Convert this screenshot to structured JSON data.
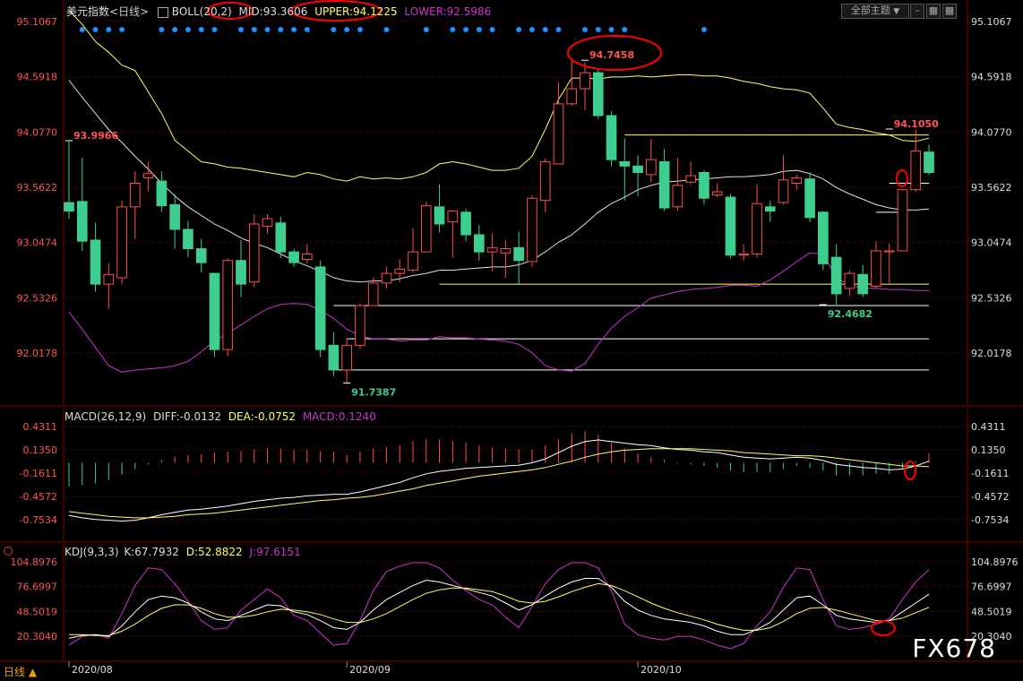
{
  "header": {
    "title": "美元指数",
    "period_tag": "<日线>",
    "boll_label": "BOLL(20,2)",
    "mid_label": "MID:93.3606",
    "upper_label": "UPPER:94.1225",
    "lower_label": "LOWER:92.5986",
    "theme_button": "全部主题",
    "theme_arrow": "▼"
  },
  "macd_header": {
    "label": "MACD(26,12,9)",
    "diff": "DIFF:-0.0132",
    "dea": "DEA:-0.0752",
    "macd": "MACD:0.1240"
  },
  "kdj_header": {
    "label": "KDJ(9,3,3)",
    "k": "K:67.7932",
    "d": "D:52.8822",
    "j": "J:97.6151"
  },
  "footer": {
    "mode": "日线 ▲",
    "watermark": "FX678"
  },
  "colors": {
    "up": "#ff4d4d",
    "down": "#3ecf8e",
    "mid": "#e0e0e0",
    "upper": "#ffff66",
    "lower": "#cc33cc",
    "axis_text_left": "#ff5555",
    "grid": "#8b0000",
    "annotation": "#ff0000",
    "dot": "#1e90ff"
  },
  "chart_data": {
    "type": "candlestick",
    "price_axis_ticks": [
      "95.1067",
      "94.5918",
      "94.0770",
      "93.5622",
      "93.0474",
      "92.5326",
      "92.0178"
    ],
    "macd_axis_ticks": [
      "0.4311",
      "0.1350",
      "-0.1611",
      "-0.4572",
      "-0.7534"
    ],
    "kdj_axis_ticks": [
      "104.8976",
      "76.6997",
      "48.5019",
      "20.3040"
    ],
    "x_labels": [
      {
        "label": "2020/08",
        "index": 0
      },
      {
        "label": "2020/09",
        "index": 21
      },
      {
        "label": "2020/10",
        "index": 43
      }
    ],
    "price_annotations": [
      {
        "text": "93.9966",
        "index": 0,
        "value": 93.9966,
        "color": "#ff5555"
      },
      {
        "text": "94.7458",
        "index": 39,
        "value": 94.7458,
        "color": "#ff5555"
      },
      {
        "text": "94.1050",
        "index": 62,
        "value": 94.105,
        "color": "#ff5555"
      },
      {
        "text": "91.7387",
        "index": 21,
        "value": 91.7387,
        "color": "#3ecf8e"
      },
      {
        "text": "92.4682",
        "index": 57,
        "value": 92.4682,
        "color": "#3ecf8e"
      }
    ],
    "hlines": [
      {
        "value": 94.05,
        "i0": 42,
        "i1": 65,
        "color": "#ffff66"
      },
      {
        "value": 93.6,
        "i0": 62,
        "i1": 65,
        "color": "#ffffff"
      },
      {
        "value": 93.33,
        "i0": 61,
        "i1": 63,
        "color": "#ffffff"
      },
      {
        "value": 92.66,
        "i0": 28,
        "i1": 65,
        "color": "#ffff66"
      },
      {
        "value": 92.46,
        "i0": 20,
        "i1": 65,
        "color": "#ffffff"
      },
      {
        "value": 92.15,
        "i0": 21,
        "i1": 65,
        "color": "#ffffff"
      },
      {
        "value": 91.86,
        "i0": 20,
        "i1": 65,
        "color": "#ffffff"
      }
    ],
    "candles": [
      [
        93.42,
        93.34,
        93.99,
        93.27
      ],
      [
        93.43,
        93.06,
        93.84,
        92.97
      ],
      [
        93.07,
        92.66,
        93.23,
        92.59
      ],
      [
        92.66,
        92.75,
        92.85,
        92.43
      ],
      [
        92.72,
        93.38,
        93.44,
        92.66
      ],
      [
        93.38,
        93.6,
        93.71,
        93.08
      ],
      [
        93.65,
        93.69,
        93.8,
        93.52
      ],
      [
        93.62,
        93.39,
        93.71,
        93.33
      ],
      [
        93.4,
        93.17,
        93.5,
        92.99
      ],
      [
        93.17,
        92.99,
        93.25,
        92.91
      ],
      [
        92.99,
        92.86,
        93.08,
        92.77
      ],
      [
        92.76,
        92.05,
        92.76,
        91.98
      ],
      [
        92.05,
        92.88,
        92.9,
        91.99
      ],
      [
        92.88,
        92.66,
        93.07,
        92.54
      ],
      [
        92.68,
        93.22,
        93.31,
        92.63
      ],
      [
        93.2,
        93.27,
        93.31,
        93.13
      ],
      [
        93.23,
        92.96,
        93.29,
        92.9
      ],
      [
        92.96,
        92.86,
        92.99,
        92.82
      ],
      [
        92.89,
        92.94,
        93.03,
        92.85
      ],
      [
        92.82,
        92.05,
        92.88,
        91.98
      ],
      [
        92.09,
        91.86,
        92.21,
        91.8
      ],
      [
        91.86,
        92.09,
        92.15,
        91.74
      ],
      [
        92.09,
        92.46,
        92.48,
        92.06
      ],
      [
        92.46,
        92.67,
        92.72,
        92.46
      ],
      [
        92.67,
        92.76,
        92.82,
        92.62
      ],
      [
        92.76,
        92.8,
        92.89,
        92.68
      ],
      [
        92.79,
        92.96,
        93.18,
        92.77
      ],
      [
        92.96,
        93.39,
        93.43,
        92.96
      ],
      [
        93.38,
        93.22,
        93.59,
        93.14
      ],
      [
        93.24,
        93.34,
        93.35,
        92.91
      ],
      [
        93.33,
        93.12,
        93.36,
        93.06
      ],
      [
        93.12,
        92.96,
        93.21,
        92.88
      ],
      [
        92.96,
        93.0,
        93.13,
        92.78
      ],
      [
        92.95,
        92.99,
        93.07,
        92.72
      ],
      [
        93.0,
        92.88,
        93.15,
        92.66
      ],
      [
        92.87,
        93.46,
        93.49,
        92.82
      ],
      [
        93.44,
        93.8,
        93.83,
        93.33
      ],
      [
        93.78,
        94.34,
        94.54,
        93.78
      ],
      [
        94.34,
        94.48,
        94.75,
        94.32
      ],
      [
        94.48,
        94.63,
        94.73,
        94.28
      ],
      [
        94.63,
        94.23,
        94.66,
        94.2
      ],
      [
        94.23,
        93.82,
        94.27,
        93.76
      ],
      [
        93.8,
        93.76,
        94.02,
        93.44
      ],
      [
        93.76,
        93.7,
        93.86,
        93.48
      ],
      [
        93.68,
        93.82,
        94.01,
        93.61
      ],
      [
        93.8,
        93.37,
        93.92,
        93.34
      ],
      [
        93.38,
        93.58,
        93.84,
        93.34
      ],
      [
        93.61,
        93.67,
        93.8,
        93.59
      ],
      [
        93.7,
        93.46,
        93.72,
        93.4
      ],
      [
        93.49,
        93.52,
        93.6,
        93.47
      ],
      [
        93.47,
        92.93,
        93.5,
        92.9
      ],
      [
        92.93,
        92.94,
        93.03,
        92.88
      ],
      [
        92.94,
        93.41,
        93.59,
        92.91
      ],
      [
        93.38,
        93.34,
        93.44,
        93.24
      ],
      [
        93.42,
        93.63,
        93.86,
        93.4
      ],
      [
        93.6,
        93.65,
        93.68,
        93.54
      ],
      [
        93.64,
        93.28,
        93.7,
        93.24
      ],
      [
        93.33,
        92.85,
        93.34,
        92.79
      ],
      [
        92.91,
        92.57,
        93.03,
        92.47
      ],
      [
        92.62,
        92.76,
        92.79,
        92.55
      ],
      [
        92.75,
        92.57,
        92.84,
        92.54
      ],
      [
        92.64,
        92.97,
        93.06,
        92.62
      ],
      [
        92.96,
        92.97,
        93.04,
        92.67
      ],
      [
        92.97,
        93.54,
        93.54,
        92.98
      ],
      [
        93.54,
        93.9,
        94.1,
        93.52
      ],
      [
        93.89,
        93.7,
        93.96,
        93.68
      ]
    ],
    "boll": {
      "upper": [
        95.21,
        95.08,
        94.92,
        94.82,
        94.7,
        94.65,
        94.45,
        94.25,
        94.0,
        93.9,
        93.8,
        93.78,
        93.75,
        93.74,
        93.72,
        93.7,
        93.68,
        93.66,
        93.7,
        93.68,
        93.64,
        93.62,
        93.66,
        93.64,
        93.65,
        93.64,
        93.66,
        93.7,
        93.78,
        93.8,
        93.78,
        93.75,
        93.72,
        93.72,
        93.74,
        93.85,
        94.1,
        94.38,
        94.58,
        94.58,
        94.57,
        94.59,
        94.59,
        94.6,
        94.59,
        94.6,
        94.61,
        94.61,
        94.6,
        94.6,
        94.58,
        94.55,
        94.53,
        94.5,
        94.48,
        94.47,
        94.44,
        94.3,
        94.15,
        94.12,
        94.1,
        94.07,
        94.05,
        94.0,
        93.99,
        94.02
      ],
      "mid": [
        94.56,
        94.4,
        94.25,
        94.1,
        93.98,
        93.85,
        93.73,
        93.6,
        93.48,
        93.38,
        93.3,
        93.22,
        93.16,
        93.09,
        93.04,
        93.0,
        92.94,
        92.88,
        92.83,
        92.78,
        92.72,
        92.69,
        92.68,
        92.69,
        92.69,
        92.71,
        92.74,
        92.76,
        92.79,
        92.79,
        92.8,
        92.81,
        92.82,
        92.82,
        92.84,
        92.88,
        92.96,
        93.05,
        93.12,
        93.22,
        93.33,
        93.41,
        93.47,
        93.54,
        93.58,
        93.61,
        93.62,
        93.63,
        93.64,
        93.65,
        93.66,
        93.66,
        93.67,
        93.68,
        93.71,
        93.72,
        93.69,
        93.64,
        93.56,
        93.5,
        93.45,
        93.4,
        93.37,
        93.35,
        93.35,
        93.36
      ],
      "lower": [
        92.4,
        92.24,
        92.07,
        91.9,
        91.84,
        91.86,
        91.87,
        91.88,
        91.9,
        91.94,
        92.03,
        92.13,
        92.2,
        92.28,
        92.36,
        92.43,
        92.47,
        92.48,
        92.47,
        92.42,
        92.34,
        92.24,
        92.18,
        92.15,
        92.15,
        92.13,
        92.14,
        92.14,
        92.17,
        92.16,
        92.16,
        92.15,
        92.14,
        92.13,
        92.1,
        92.02,
        91.9,
        91.86,
        91.85,
        91.92,
        92.1,
        92.25,
        92.36,
        92.44,
        92.53,
        92.56,
        92.59,
        92.61,
        92.62,
        92.63,
        92.65,
        92.65,
        92.64,
        92.7,
        92.78,
        92.87,
        92.95,
        92.94,
        92.72,
        92.65,
        92.62,
        92.62,
        92.61,
        92.61,
        92.6,
        92.6
      ]
    },
    "dots_indices": [
      1,
      2,
      3,
      4,
      7,
      8,
      9,
      10,
      11,
      13,
      14,
      15,
      16,
      17,
      18,
      20,
      21,
      22,
      24,
      27,
      29,
      30,
      31,
      32,
      34,
      35,
      36,
      37,
      39,
      40,
      41,
      42,
      48
    ],
    "macd": {
      "dif": [
        -0.7,
        -0.73,
        -0.75,
        -0.76,
        -0.77,
        -0.76,
        -0.73,
        -0.69,
        -0.66,
        -0.63,
        -0.62,
        -0.6,
        -0.58,
        -0.55,
        -0.52,
        -0.5,
        -0.48,
        -0.47,
        -0.45,
        -0.44,
        -0.43,
        -0.43,
        -0.4,
        -0.36,
        -0.32,
        -0.28,
        -0.22,
        -0.17,
        -0.14,
        -0.12,
        -0.1,
        -0.09,
        -0.08,
        -0.07,
        -0.06,
        -0.03,
        0.02,
        0.1,
        0.18,
        0.24,
        0.26,
        0.24,
        0.22,
        0.2,
        0.19,
        0.16,
        0.14,
        0.13,
        0.11,
        0.1,
        0.07,
        0.04,
        0.03,
        0.02,
        0.03,
        0.04,
        0.03,
        0.0,
        -0.05,
        -0.07,
        -0.09,
        -0.1,
        -0.12,
        -0.11,
        -0.07,
        -0.01
      ],
      "dea": [
        -0.65,
        -0.67,
        -0.69,
        -0.71,
        -0.72,
        -0.73,
        -0.73,
        -0.72,
        -0.71,
        -0.69,
        -0.68,
        -0.67,
        -0.65,
        -0.63,
        -0.61,
        -0.59,
        -0.57,
        -0.55,
        -0.53,
        -0.51,
        -0.5,
        -0.48,
        -0.47,
        -0.45,
        -0.42,
        -0.39,
        -0.36,
        -0.32,
        -0.29,
        -0.26,
        -0.23,
        -0.2,
        -0.18,
        -0.16,
        -0.14,
        -0.12,
        -0.09,
        -0.05,
        -0.01,
        0.04,
        0.08,
        0.11,
        0.13,
        0.14,
        0.15,
        0.15,
        0.15,
        0.15,
        0.14,
        0.13,
        0.12,
        0.1,
        0.09,
        0.08,
        0.07,
        0.06,
        0.06,
        0.05,
        0.03,
        0.01,
        -0.01,
        -0.03,
        -0.05,
        -0.07,
        -0.07,
        -0.08
      ],
      "hist": [
        -0.3,
        -0.28,
        -0.26,
        -0.22,
        -0.15,
        -0.08,
        -0.02,
        0.04,
        0.08,
        0.1,
        0.11,
        0.13,
        0.14,
        0.15,
        0.17,
        0.19,
        0.18,
        0.17,
        0.17,
        0.15,
        0.14,
        0.1,
        0.14,
        0.18,
        0.2,
        0.22,
        0.28,
        0.3,
        0.3,
        0.28,
        0.26,
        0.22,
        0.2,
        0.18,
        0.17,
        0.17,
        0.22,
        0.3,
        0.38,
        0.4,
        0.36,
        0.26,
        0.18,
        0.12,
        0.08,
        0.04,
        -0.01,
        -0.02,
        -0.04,
        -0.06,
        -0.1,
        -0.12,
        -0.12,
        -0.12,
        -0.08,
        -0.04,
        -0.06,
        -0.1,
        -0.16,
        -0.16,
        -0.16,
        -0.14,
        -0.14,
        -0.08,
        0.02,
        0.12
      ]
    },
    "kdj": {
      "k": [
        18,
        21,
        22,
        20,
        32,
        48,
        62,
        66,
        64,
        58,
        48,
        40,
        38,
        44,
        50,
        56,
        55,
        48,
        45,
        38,
        30,
        28,
        36,
        50,
        62,
        70,
        78,
        84,
        82,
        78,
        74,
        70,
        66,
        58,
        50,
        56,
        66,
        75,
        82,
        86,
        86,
        76,
        60,
        50,
        44,
        40,
        38,
        36,
        32,
        26,
        22,
        22,
        28,
        36,
        50,
        64,
        66,
        56,
        44,
        40,
        38,
        36,
        38,
        48,
        58,
        68
      ],
      "d": [
        22,
        22,
        21,
        21,
        26,
        34,
        44,
        52,
        56,
        56,
        52,
        46,
        42,
        42,
        44,
        48,
        51,
        50,
        48,
        45,
        40,
        36,
        36,
        40,
        46,
        54,
        62,
        69,
        73,
        75,
        75,
        73,
        71,
        66,
        60,
        58,
        60,
        65,
        71,
        76,
        80,
        78,
        72,
        65,
        58,
        52,
        47,
        43,
        39,
        34,
        30,
        27,
        27,
        30,
        37,
        46,
        52,
        53,
        50,
        46,
        42,
        38,
        38,
        41,
        47,
        53
      ],
      "j": [
        10,
        20,
        22,
        18,
        46,
        78,
        98,
        96,
        80,
        60,
        38,
        28,
        30,
        50,
        62,
        74,
        64,
        44,
        38,
        24,
        10,
        12,
        38,
        72,
        94,
        100,
        104,
        104,
        98,
        84,
        72,
        62,
        56,
        42,
        30,
        54,
        80,
        96,
        104,
        104,
        98,
        72,
        34,
        22,
        18,
        16,
        20,
        20,
        16,
        10,
        6,
        12,
        32,
        48,
        76,
        98,
        96,
        62,
        32,
        28,
        30,
        34,
        40,
        62,
        82,
        96
      ]
    }
  }
}
